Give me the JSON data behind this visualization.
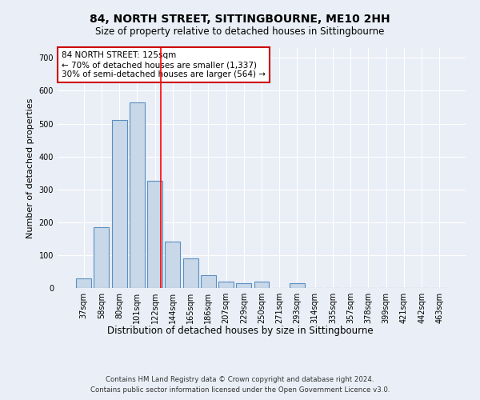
{
  "title": "84, NORTH STREET, SITTINGBOURNE, ME10 2HH",
  "subtitle": "Size of property relative to detached houses in Sittingbourne",
  "xlabel": "Distribution of detached houses by size in Sittingbourne",
  "ylabel": "Number of detached properties",
  "footnote1": "Contains HM Land Registry data © Crown copyright and database right 2024.",
  "footnote2": "Contains public sector information licensed under the Open Government Licence v3.0.",
  "categories": [
    "37sqm",
    "58sqm",
    "80sqm",
    "101sqm",
    "122sqm",
    "144sqm",
    "165sqm",
    "186sqm",
    "207sqm",
    "229sqm",
    "250sqm",
    "271sqm",
    "293sqm",
    "314sqm",
    "335sqm",
    "357sqm",
    "378sqm",
    "399sqm",
    "421sqm",
    "442sqm",
    "463sqm"
  ],
  "values": [
    30,
    185,
    510,
    565,
    325,
    140,
    90,
    40,
    20,
    15,
    20,
    0,
    15,
    0,
    0,
    0,
    0,
    0,
    0,
    0,
    0
  ],
  "bar_color": "#c8d8e8",
  "bar_edge_color": "#5a8fc0",
  "bar_edge_width": 0.8,
  "background_color": "#eaeff7",
  "grid_color": "#ffffff",
  "ylim": [
    0,
    730
  ],
  "yticks": [
    0,
    100,
    200,
    300,
    400,
    500,
    600,
    700
  ],
  "red_line_index": 4,
  "annotation_text": "84 NORTH STREET: 125sqm\n← 70% of detached houses are smaller (1,337)\n30% of semi-detached houses are larger (564) →",
  "annotation_box_color": "#ffffff",
  "annotation_box_edge_color": "#cc0000",
  "title_fontsize": 10,
  "subtitle_fontsize": 8.5,
  "tick_fontsize": 7,
  "annotation_fontsize": 7.5,
  "ylabel_fontsize": 8,
  "xlabel_fontsize": 8.5
}
